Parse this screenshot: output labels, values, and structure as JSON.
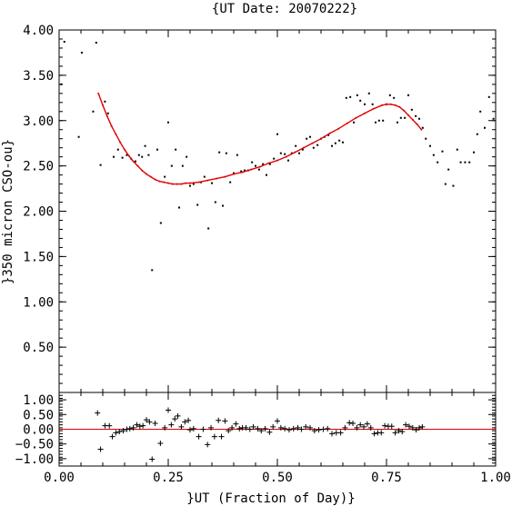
{
  "chart_data": [
    {
      "type": "scatter",
      "title": "{UT Date: 20070222}",
      "xlabel": "",
      "ylabel": "}350 micron CSO-ou}",
      "xlim": [
        0.0,
        1.0
      ],
      "ylim": [
        0.0,
        4.0
      ],
      "x_tick_labels": [
        "0.00",
        "0.25",
        "0.50",
        "0.75",
        "1.00"
      ],
      "y_tick_labels": [
        "0.50",
        "1.00",
        "1.50",
        "2.00",
        "2.50",
        "3.00",
        "3.50",
        "4.00"
      ],
      "y_tick_values": [
        0.5,
        1.0,
        1.5,
        2.0,
        2.5,
        3.0,
        3.5,
        4.0
      ],
      "series": [
        {
          "marker": "dot",
          "color": "#000000",
          "points": [
            [
              0.005,
              3.4
            ],
            [
              0.012,
              3.87
            ],
            [
              0.045,
              2.82
            ],
            [
              0.052,
              3.75
            ],
            [
              0.078,
              3.1
            ],
            [
              0.085,
              3.86
            ],
            [
              0.095,
              2.51
            ],
            [
              0.105,
              3.21
            ],
            [
              0.112,
              3.08
            ],
            [
              0.125,
              2.6
            ],
            [
              0.135,
              2.68
            ],
            [
              0.145,
              2.59
            ],
            [
              0.155,
              2.62
            ],
            [
              0.165,
              2.58
            ],
            [
              0.175,
              2.55
            ],
            [
              0.183,
              2.62
            ],
            [
              0.19,
              2.6
            ],
            [
              0.197,
              2.72
            ],
            [
              0.205,
              2.62
            ],
            [
              0.213,
              1.35
            ],
            [
              0.225,
              2.68
            ],
            [
              0.233,
              1.87
            ],
            [
              0.242,
              2.38
            ],
            [
              0.25,
              2.98
            ],
            [
              0.258,
              2.5
            ],
            [
              0.267,
              2.68
            ],
            [
              0.275,
              2.04
            ],
            [
              0.283,
              2.5
            ],
            [
              0.292,
              2.6
            ],
            [
              0.3,
              2.28
            ],
            [
              0.308,
              2.3
            ],
            [
              0.317,
              2.07
            ],
            [
              0.325,
              2.32
            ],
            [
              0.333,
              2.38
            ],
            [
              0.342,
              1.81
            ],
            [
              0.35,
              2.31
            ],
            [
              0.358,
              2.1
            ],
            [
              0.367,
              2.65
            ],
            [
              0.375,
              2.06
            ],
            [
              0.383,
              2.64
            ],
            [
              0.392,
              2.32
            ],
            [
              0.4,
              2.42
            ],
            [
              0.408,
              2.62
            ],
            [
              0.417,
              2.44
            ],
            [
              0.425,
              2.45
            ],
            [
              0.433,
              2.45
            ],
            [
              0.442,
              2.54
            ],
            [
              0.45,
              2.5
            ],
            [
              0.458,
              2.46
            ],
            [
              0.467,
              2.52
            ],
            [
              0.475,
              2.4
            ],
            [
              0.483,
              2.52
            ],
            [
              0.492,
              2.58
            ],
            [
              0.5,
              2.85
            ],
            [
              0.508,
              2.64
            ],
            [
              0.517,
              2.63
            ],
            [
              0.525,
              2.56
            ],
            [
              0.533,
              2.64
            ],
            [
              0.542,
              2.72
            ],
            [
              0.55,
              2.64
            ],
            [
              0.558,
              2.68
            ],
            [
              0.567,
              2.8
            ],
            [
              0.575,
              2.82
            ],
            [
              0.583,
              2.7
            ],
            [
              0.592,
              2.73
            ],
            [
              0.6,
              2.8
            ],
            [
              0.608,
              2.82
            ],
            [
              0.617,
              2.84
            ],
            [
              0.625,
              2.72
            ],
            [
              0.633,
              2.75
            ],
            [
              0.642,
              2.78
            ],
            [
              0.65,
              2.76
            ],
            [
              0.658,
              3.25
            ],
            [
              0.667,
              3.26
            ],
            [
              0.675,
              2.98
            ],
            [
              0.683,
              3.28
            ],
            [
              0.69,
              3.22
            ],
            [
              0.7,
              3.18
            ],
            [
              0.71,
              3.3
            ],
            [
              0.718,
              3.18
            ],
            [
              0.725,
              2.98
            ],
            [
              0.733,
              3.0
            ],
            [
              0.742,
              3.0
            ],
            [
              0.75,
              3.18
            ],
            [
              0.758,
              3.28
            ],
            [
              0.767,
              3.25
            ],
            [
              0.775,
              2.98
            ],
            [
              0.783,
              3.03
            ],
            [
              0.792,
              3.03
            ],
            [
              0.8,
              3.28
            ],
            [
              0.808,
              3.12
            ],
            [
              0.817,
              3.05
            ],
            [
              0.825,
              3.02
            ],
            [
              0.833,
              2.92
            ],
            [
              0.84,
              2.8
            ],
            [
              0.85,
              2.72
            ],
            [
              0.858,
              2.62
            ],
            [
              0.867,
              2.54
            ],
            [
              0.878,
              2.66
            ],
            [
              0.885,
              2.3
            ],
            [
              0.892,
              2.46
            ],
            [
              0.903,
              2.28
            ],
            [
              0.912,
              2.68
            ],
            [
              0.92,
              2.54
            ],
            [
              0.93,
              2.54
            ],
            [
              0.94,
              2.54
            ],
            [
              0.95,
              2.65
            ],
            [
              0.958,
              2.85
            ],
            [
              0.965,
              3.1
            ],
            [
              0.975,
              2.92
            ],
            [
              0.985,
              3.26
            ],
            [
              0.995,
              3.02
            ]
          ]
        },
        {
          "marker": "line",
          "color": "#e00000",
          "points": [
            [
              0.09,
              3.3
            ],
            [
              0.1,
              3.17
            ],
            [
              0.11,
              3.05
            ],
            [
              0.12,
              2.94
            ],
            [
              0.13,
              2.85
            ],
            [
              0.14,
              2.76
            ],
            [
              0.15,
              2.68
            ],
            [
              0.16,
              2.61
            ],
            [
              0.17,
              2.55
            ],
            [
              0.18,
              2.5
            ],
            [
              0.19,
              2.45
            ],
            [
              0.2,
              2.41
            ],
            [
              0.21,
              2.38
            ],
            [
              0.22,
              2.35
            ],
            [
              0.23,
              2.33
            ],
            [
              0.24,
              2.32
            ],
            [
              0.25,
              2.31
            ],
            [
              0.26,
              2.3
            ],
            [
              0.27,
              2.3
            ],
            [
              0.28,
              2.3
            ],
            [
              0.29,
              2.31
            ],
            [
              0.3,
              2.31
            ],
            [
              0.32,
              2.32
            ],
            [
              0.34,
              2.34
            ],
            [
              0.36,
              2.36
            ],
            [
              0.38,
              2.38
            ],
            [
              0.4,
              2.41
            ],
            [
              0.42,
              2.43
            ],
            [
              0.44,
              2.46
            ],
            [
              0.46,
              2.49
            ],
            [
              0.48,
              2.53
            ],
            [
              0.5,
              2.56
            ],
            [
              0.52,
              2.6
            ],
            [
              0.54,
              2.65
            ],
            [
              0.56,
              2.7
            ],
            [
              0.58,
              2.75
            ],
            [
              0.6,
              2.8
            ],
            [
              0.62,
              2.86
            ],
            [
              0.64,
              2.91
            ],
            [
              0.66,
              2.97
            ],
            [
              0.68,
              3.03
            ],
            [
              0.7,
              3.08
            ],
            [
              0.72,
              3.13
            ],
            [
              0.74,
              3.17
            ],
            [
              0.75,
              3.18
            ],
            [
              0.76,
              3.18
            ],
            [
              0.77,
              3.17
            ],
            [
              0.78,
              3.15
            ],
            [
              0.79,
              3.11
            ],
            [
              0.8,
              3.06
            ],
            [
              0.81,
              3.01
            ],
            [
              0.82,
              2.96
            ],
            [
              0.83,
              2.9
            ]
          ]
        }
      ]
    },
    {
      "type": "scatter",
      "xlabel": "}UT (Fraction of Day)}",
      "ylabel": "",
      "xlim": [
        0.0,
        1.0
      ],
      "ylim": [
        -1.25,
        1.25
      ],
      "x_tick_labels": [
        "0.00",
        "0.25",
        "0.50",
        "0.75",
        "1.00"
      ],
      "y_tick_labels": [
        "1.00",
        "0.50",
        "0.00",
        "−0.50",
        "−1.00"
      ],
      "y_tick_values": [
        1.0,
        0.5,
        0.0,
        -0.5,
        -1.0
      ],
      "zero_line": 0.0,
      "series": [
        {
          "marker": "plus",
          "color": "#000000",
          "points": [
            [
              0.088,
              0.55
            ],
            [
              0.095,
              -0.68
            ],
            [
              0.105,
              0.12
            ],
            [
              0.115,
              0.12
            ],
            [
              0.122,
              -0.25
            ],
            [
              0.13,
              -0.12
            ],
            [
              0.138,
              -0.08
            ],
            [
              0.147,
              -0.05
            ],
            [
              0.155,
              0.0
            ],
            [
              0.162,
              0.02
            ],
            [
              0.17,
              0.05
            ],
            [
              0.178,
              0.15
            ],
            [
              0.185,
              0.1
            ],
            [
              0.192,
              0.12
            ],
            [
              0.2,
              0.32
            ],
            [
              0.207,
              0.25
            ],
            [
              0.213,
              -1.02
            ],
            [
              0.22,
              0.2
            ],
            [
              0.232,
              -0.48
            ],
            [
              0.242,
              0.05
            ],
            [
              0.25,
              0.65
            ],
            [
              0.257,
              0.15
            ],
            [
              0.265,
              0.35
            ],
            [
              0.272,
              0.45
            ],
            [
              0.28,
              0.08
            ],
            [
              0.288,
              0.25
            ],
            [
              0.296,
              0.3
            ],
            [
              0.3,
              -0.02
            ],
            [
              0.308,
              0.02
            ],
            [
              0.32,
              -0.25
            ],
            [
              0.33,
              0.0
            ],
            [
              0.34,
              -0.52
            ],
            [
              0.348,
              0.05
            ],
            [
              0.356,
              -0.25
            ],
            [
              0.365,
              0.3
            ],
            [
              0.372,
              -0.25
            ],
            [
              0.38,
              0.28
            ],
            [
              0.388,
              -0.05
            ],
            [
              0.396,
              0.05
            ],
            [
              0.405,
              0.18
            ],
            [
              0.413,
              0.02
            ],
            [
              0.42,
              0.05
            ],
            [
              0.428,
              0.05
            ],
            [
              0.437,
              0.0
            ],
            [
              0.445,
              0.08
            ],
            [
              0.455,
              0.02
            ],
            [
              0.463,
              -0.05
            ],
            [
              0.472,
              0.02
            ],
            [
              0.482,
              -0.1
            ],
            [
              0.49,
              0.08
            ],
            [
              0.5,
              0.28
            ],
            [
              0.508,
              0.05
            ],
            [
              0.517,
              0.02
            ],
            [
              0.527,
              -0.02
            ],
            [
              0.537,
              0.02
            ],
            [
              0.547,
              0.05
            ],
            [
              0.555,
              0.0
            ],
            [
              0.565,
              0.08
            ],
            [
              0.575,
              0.05
            ],
            [
              0.585,
              -0.05
            ],
            [
              0.595,
              -0.02
            ],
            [
              0.605,
              0.0
            ],
            [
              0.615,
              0.02
            ],
            [
              0.625,
              -0.15
            ],
            [
              0.635,
              -0.12
            ],
            [
              0.645,
              -0.12
            ],
            [
              0.655,
              0.05
            ],
            [
              0.665,
              0.22
            ],
            [
              0.673,
              0.2
            ],
            [
              0.682,
              0.05
            ],
            [
              0.69,
              0.15
            ],
            [
              0.698,
              0.08
            ],
            [
              0.706,
              0.18
            ],
            [
              0.714,
              0.05
            ],
            [
              0.722,
              -0.15
            ],
            [
              0.73,
              -0.12
            ],
            [
              0.738,
              -0.12
            ],
            [
              0.746,
              0.12
            ],
            [
              0.754,
              0.1
            ],
            [
              0.762,
              0.1
            ],
            [
              0.77,
              -0.12
            ],
            [
              0.778,
              -0.05
            ],
            [
              0.786,
              -0.08
            ],
            [
              0.794,
              0.15
            ],
            [
              0.802,
              0.1
            ],
            [
              0.81,
              0.05
            ],
            [
              0.818,
              -0.02
            ],
            [
              0.825,
              0.05
            ],
            [
              0.832,
              0.08
            ]
          ]
        }
      ]
    }
  ]
}
